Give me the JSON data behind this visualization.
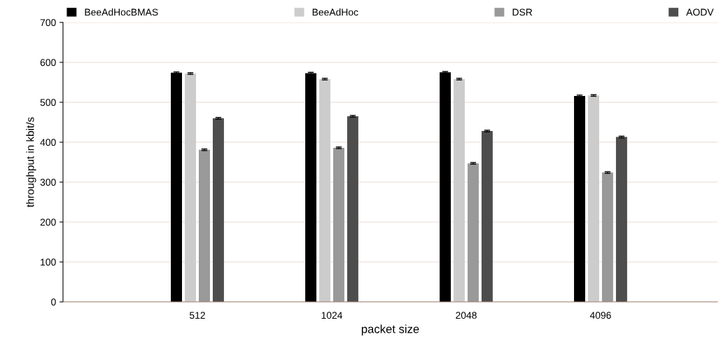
{
  "chart_data": {
    "type": "bar",
    "xlabel": "packet size",
    "ylabel": "throughput in kbit/s",
    "categories": [
      "512",
      "1024",
      "2048",
      "4096"
    ],
    "series": [
      {
        "name": "BeeAdHocBMAS",
        "color": "#000000",
        "values": [
          574,
          573,
          575,
          516
        ],
        "errors": [
          2,
          2,
          2,
          2
        ]
      },
      {
        "name": "BeeAdHoc",
        "color": "#cccccc",
        "values": [
          572,
          558,
          558,
          517
        ],
        "errors": [
          2,
          2,
          2,
          2
        ]
      },
      {
        "name": "DSR",
        "color": "#999999",
        "values": [
          381,
          386,
          347,
          324
        ],
        "errors": [
          2,
          2,
          2,
          2
        ]
      },
      {
        "name": "AODV",
        "color": "#4d4d4d",
        "values": [
          460,
          465,
          428,
          413
        ],
        "errors": [
          2,
          2,
          2,
          2
        ]
      }
    ],
    "ylim": [
      0,
      700
    ],
    "yticks": [
      0,
      100,
      200,
      300,
      400,
      500,
      600,
      700
    ],
    "grid": "y",
    "legend": "top"
  }
}
